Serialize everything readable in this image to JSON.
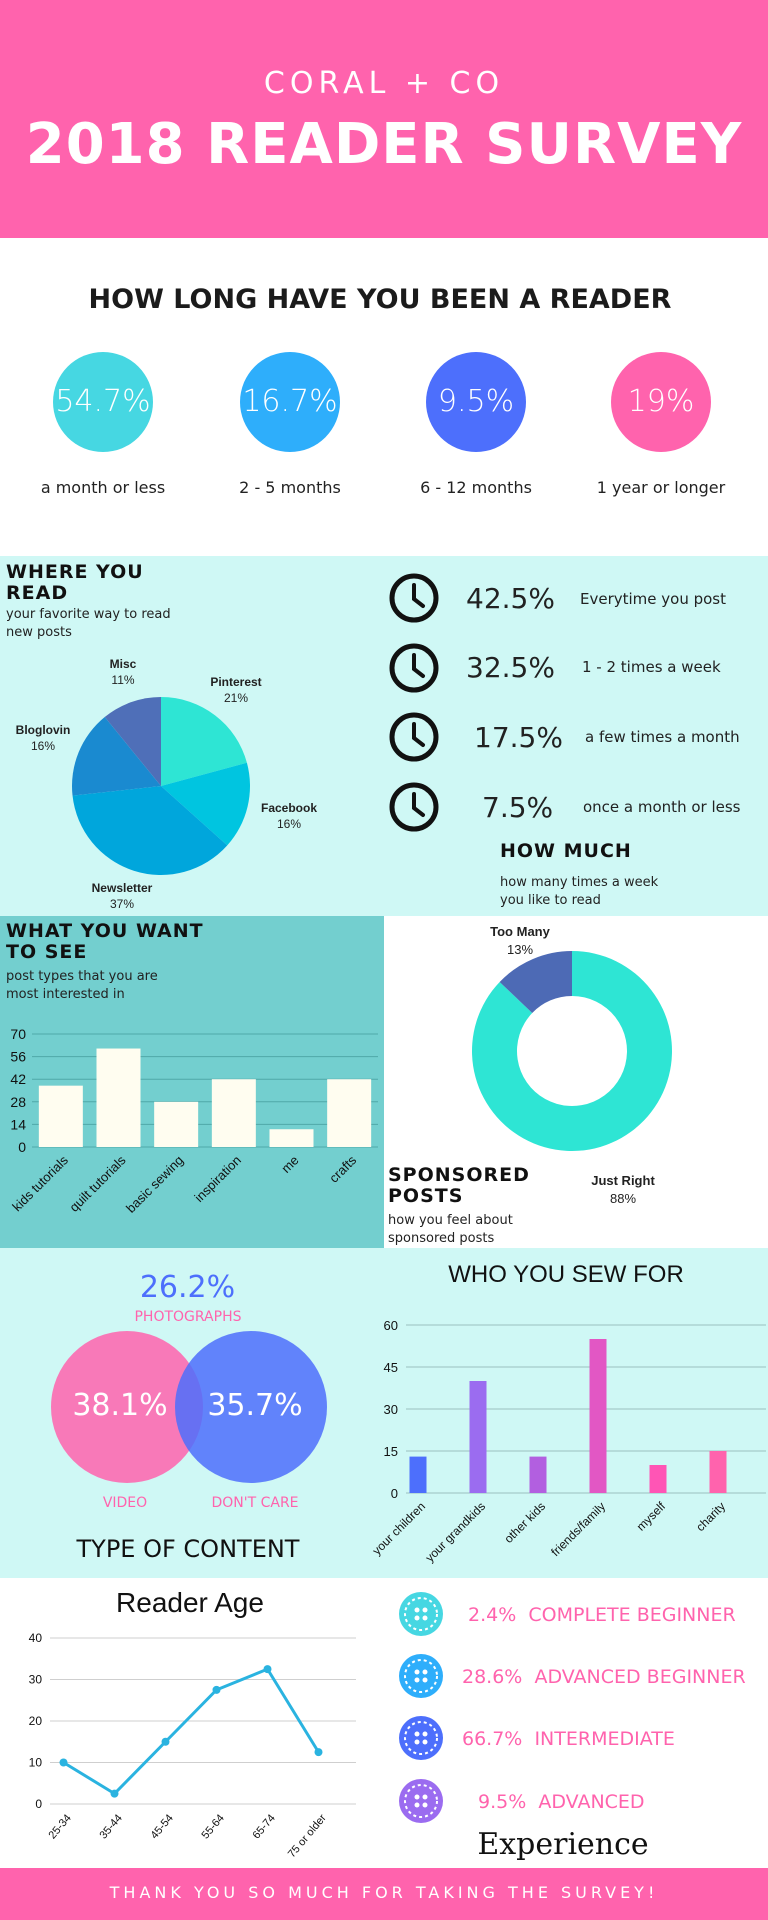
{
  "header": {
    "brand": "CORAL + CO",
    "title": "2018 READER SURVEY"
  },
  "colors": {
    "pink": "#ff63ad",
    "cyan": "#46d7e2",
    "blue": "#2eaefb",
    "indigo": "#4d6ffc",
    "teal": "#2ee5d4",
    "mint_bg": "#cff8f5",
    "teal_bg": "#73cfcf",
    "purple": "#9b6cf0"
  },
  "duration": {
    "title": "HOW LONG HAVE YOU BEEN A READER",
    "items": [
      {
        "pct": "54.7%",
        "label": "a month or less",
        "color": "#46d7e2"
      },
      {
        "pct": "16.7%",
        "label": "2 - 5 months",
        "color": "#2eaefb"
      },
      {
        "pct": "9.5%",
        "label": "6 - 12 months",
        "color": "#4d6ffc"
      },
      {
        "pct": "19%",
        "label": "1 year or longer",
        "color": "#ff63ad"
      }
    ]
  },
  "where": {
    "title": "WHERE YOU READ",
    "subtitle": "your favorite way to read new posts"
  },
  "how_much": {
    "title": "HOW MUCH",
    "subtitle": "how many times a week you like to read",
    "items": [
      {
        "pct": "42.5%",
        "label": "Everytime you post"
      },
      {
        "pct": "32.5%",
        "label": "1 - 2 times a week"
      },
      {
        "pct": "17.5%",
        "label": "a few times a month"
      },
      {
        "pct": "7.5%",
        "label": "once a month or less"
      }
    ]
  },
  "want": {
    "title": "WHAT YOU WANT TO SEE",
    "subtitle": "post types that you are most interested in"
  },
  "sponsored": {
    "title": "SPONSORED POSTS",
    "subtitle": "how you feel about sponsored posts"
  },
  "content": {
    "title": "TYPE OF CONTENT",
    "photographs_pct": "26.2%",
    "photographs_label": "PHOTOGRAPHS",
    "video_pct": "38.1%",
    "video_label": "VIDEO",
    "dontcare_pct": "35.7%",
    "dontcare_label": "DON'T CARE"
  },
  "experience": {
    "title": "Experience",
    "items": [
      {
        "pct": "2.4%",
        "label": "COMPLETE BEGINNER",
        "color": "#46d7e2"
      },
      {
        "pct": "28.6%",
        "label": "ADVANCED BEGINNER",
        "color": "#2eaefb"
      },
      {
        "pct": "66.7%",
        "label": "INTERMEDIATE",
        "color": "#4d6ffc"
      },
      {
        "pct": "9.5%",
        "label": "ADVANCED",
        "color": "#9b6cf0"
      }
    ]
  },
  "footer": {
    "text": "THANK YOU SO MUCH FOR TAKING THE SURVEY!"
  },
  "chart_data": [
    {
      "id": "where_you_read",
      "type": "pie",
      "categories": [
        "Pinterest",
        "Facebook",
        "Newsletter",
        "Bloglovin",
        "Misc"
      ],
      "values": [
        21,
        16,
        37,
        16,
        11
      ],
      "value_labels": [
        "21%",
        "16%",
        "37%",
        "16%",
        "11%"
      ],
      "colors": [
        "#2ee5d4",
        "#00c5e0",
        "#00a6dc",
        "#1a8ad0",
        "#4f6fb8"
      ]
    },
    {
      "id": "what_you_want_to_see",
      "type": "bar",
      "categories": [
        "kids tutorials",
        "quilt tutorials",
        "basic sewing",
        "inspiration",
        "me",
        "crafts"
      ],
      "values": [
        38,
        61,
        28,
        42,
        11,
        42
      ],
      "ylim": [
        0,
        70
      ],
      "yticks": [
        0,
        14,
        28,
        42,
        56,
        70
      ],
      "bar_color": "#fffdf0"
    },
    {
      "id": "sponsored_posts",
      "type": "pie",
      "donut": true,
      "categories": [
        "Just Right",
        "Too Many"
      ],
      "values": [
        88,
        13
      ],
      "value_labels": [
        "88%",
        "13%"
      ],
      "colors": [
        "#2ee5d4",
        "#4d6ab5"
      ]
    },
    {
      "id": "who_you_sew_for",
      "title": "WHO YOU SEW FOR",
      "type": "bar",
      "categories": [
        "your children",
        "your grandkids",
        "other kids",
        "friends/family",
        "myself",
        "charity"
      ],
      "values": [
        13,
        40,
        13,
        55,
        10,
        15
      ],
      "ylim": [
        0,
        60
      ],
      "yticks": [
        0,
        15,
        30,
        45,
        60
      ],
      "colors": [
        "#4d6ffc",
        "#9b6cf0",
        "#b25fe0",
        "#e257c4",
        "#ff55b5",
        "#ff63ad"
      ]
    },
    {
      "id": "reader_age",
      "title": "Reader Age",
      "type": "line",
      "categories": [
        "25-34",
        "35-44",
        "45-54",
        "55-64",
        "65-74",
        "75 or older"
      ],
      "values": [
        10,
        2.5,
        15,
        27.5,
        32.5,
        12.5
      ],
      "ylim": [
        0,
        40
      ],
      "yticks": [
        0,
        10,
        20,
        30,
        40
      ],
      "color": "#2ab3e0"
    }
  ]
}
